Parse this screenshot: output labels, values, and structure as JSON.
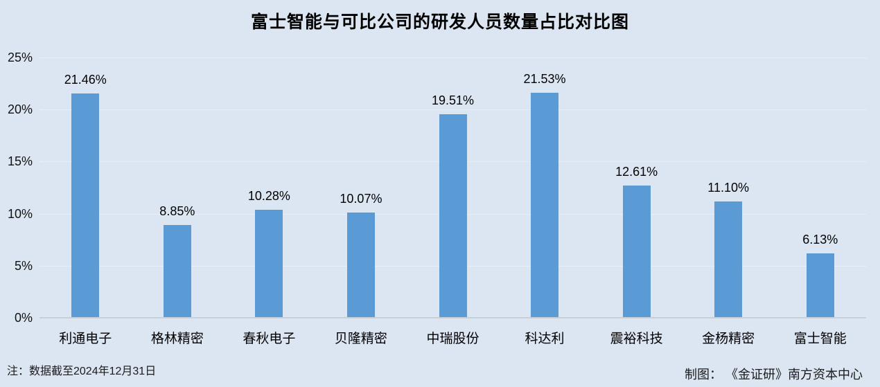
{
  "title": "富士智能与可比公司的研发人员数量占比对比图",
  "footer": {
    "note_left": "注：数据截至2024年12月31日",
    "credit_right": "制图： 《金证研》南方资本中心"
  },
  "colors": {
    "background": "#dce6f2",
    "bar": "#5b9bd5",
    "gridline": "#e9eff7",
    "axis_line": "#c9cfd7",
    "text": "#000000"
  },
  "chart_data": {
    "type": "bar",
    "title": "富士智能与可比公司的研发人员数量占比对比图",
    "categories": [
      "利通电子",
      "格林精密",
      "春秋电子",
      "贝隆精密",
      "中瑞股份",
      "科达利",
      "震裕科技",
      "金杨精密",
      "富士智能"
    ],
    "values": [
      21.46,
      8.85,
      10.28,
      10.07,
      19.51,
      21.53,
      12.61,
      11.1,
      6.13
    ],
    "value_labels": [
      "21.46%",
      "8.85%",
      "10.28%",
      "10.07%",
      "19.51%",
      "21.53%",
      "12.61%",
      "11.10%",
      "6.13%"
    ],
    "xlabel": "",
    "ylabel": "",
    "ylim": [
      0,
      25
    ],
    "ytick_values": [
      0,
      5,
      10,
      15,
      20,
      25
    ],
    "ytick_labels": [
      "0%",
      "5%",
      "10%",
      "15%",
      "20%",
      "25%"
    ],
    "grid": true,
    "legend": false,
    "note": "注：数据截至2024年12月31日",
    "credit": "制图： 《金证研》南方资本中心"
  }
}
